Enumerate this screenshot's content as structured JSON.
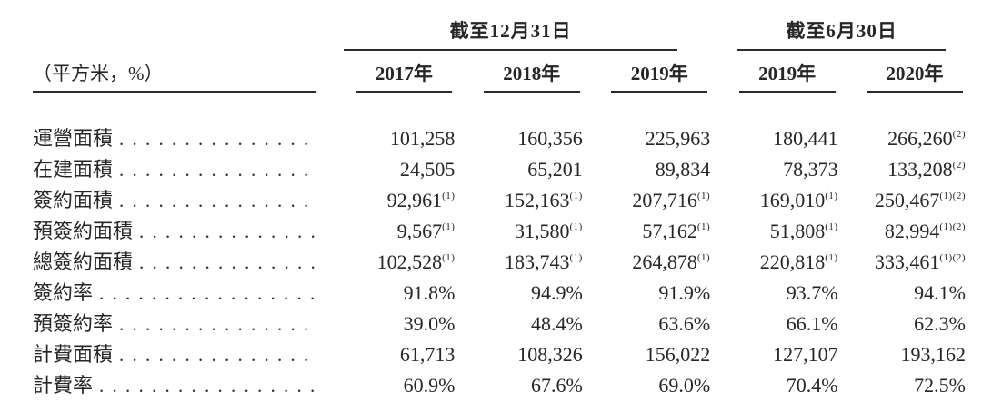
{
  "page": {
    "background": "#ffffff",
    "text_color": "#262626",
    "rule_color": "#2b2b2b"
  },
  "table": {
    "unit_label": "（平方米，%）",
    "column_groups": [
      {
        "label": "截至12月31日",
        "span": 3
      },
      {
        "label": "截至6月30日",
        "span": 2
      }
    ],
    "year_headers": [
      "2017年",
      "2018年",
      "2019年",
      "2019年",
      "2020年"
    ],
    "rows": [
      {
        "label": "運營面積",
        "values": [
          {
            "v": "101,258"
          },
          {
            "v": "160,356"
          },
          {
            "v": "225,963"
          },
          {
            "v": "180,441"
          },
          {
            "v": "266,260",
            "sup": "(2)"
          }
        ]
      },
      {
        "label": "在建面積",
        "values": [
          {
            "v": "24,505"
          },
          {
            "v": "65,201"
          },
          {
            "v": "89,834"
          },
          {
            "v": "78,373"
          },
          {
            "v": "133,208",
            "sup": "(2)"
          }
        ]
      },
      {
        "label": "簽約面積",
        "values": [
          {
            "v": "92,961",
            "sup": "(1)"
          },
          {
            "v": "152,163",
            "sup": "(1)"
          },
          {
            "v": "207,716",
            "sup": "(1)"
          },
          {
            "v": "169,010",
            "sup": "(1)"
          },
          {
            "v": "250,467",
            "sup": "(1)(2)"
          }
        ]
      },
      {
        "label": "預簽約面積",
        "values": [
          {
            "v": "9,567",
            "sup": "(1)"
          },
          {
            "v": "31,580",
            "sup": "(1)"
          },
          {
            "v": "57,162",
            "sup": "(1)"
          },
          {
            "v": "51,808",
            "sup": "(1)"
          },
          {
            "v": "82,994",
            "sup": "(1)(2)"
          }
        ]
      },
      {
        "label": "總簽約面積",
        "values": [
          {
            "v": "102,528",
            "sup": "(1)"
          },
          {
            "v": "183,743",
            "sup": "(1)"
          },
          {
            "v": "264,878",
            "sup": "(1)"
          },
          {
            "v": "220,818",
            "sup": "(1)"
          },
          {
            "v": "333,461",
            "sup": "(1)(2)"
          }
        ]
      },
      {
        "label": "簽約率",
        "values": [
          {
            "v": "91.8%"
          },
          {
            "v": "94.9%"
          },
          {
            "v": "91.9%"
          },
          {
            "v": "93.7%"
          },
          {
            "v": "94.1%"
          }
        ]
      },
      {
        "label": "預簽約率",
        "values": [
          {
            "v": "39.0%"
          },
          {
            "v": "48.4%"
          },
          {
            "v": "63.6%"
          },
          {
            "v": "66.1%"
          },
          {
            "v": "62.3%"
          }
        ]
      },
      {
        "label": "計費面積",
        "values": [
          {
            "v": "61,713"
          },
          {
            "v": "108,326"
          },
          {
            "v": "156,022"
          },
          {
            "v": "127,107"
          },
          {
            "v": "193,162"
          }
        ]
      },
      {
        "label": "計費率",
        "values": [
          {
            "v": "60.9%"
          },
          {
            "v": "67.6%"
          },
          {
            "v": "69.0%"
          },
          {
            "v": "70.4%"
          },
          {
            "v": "72.5%"
          }
        ]
      }
    ]
  }
}
